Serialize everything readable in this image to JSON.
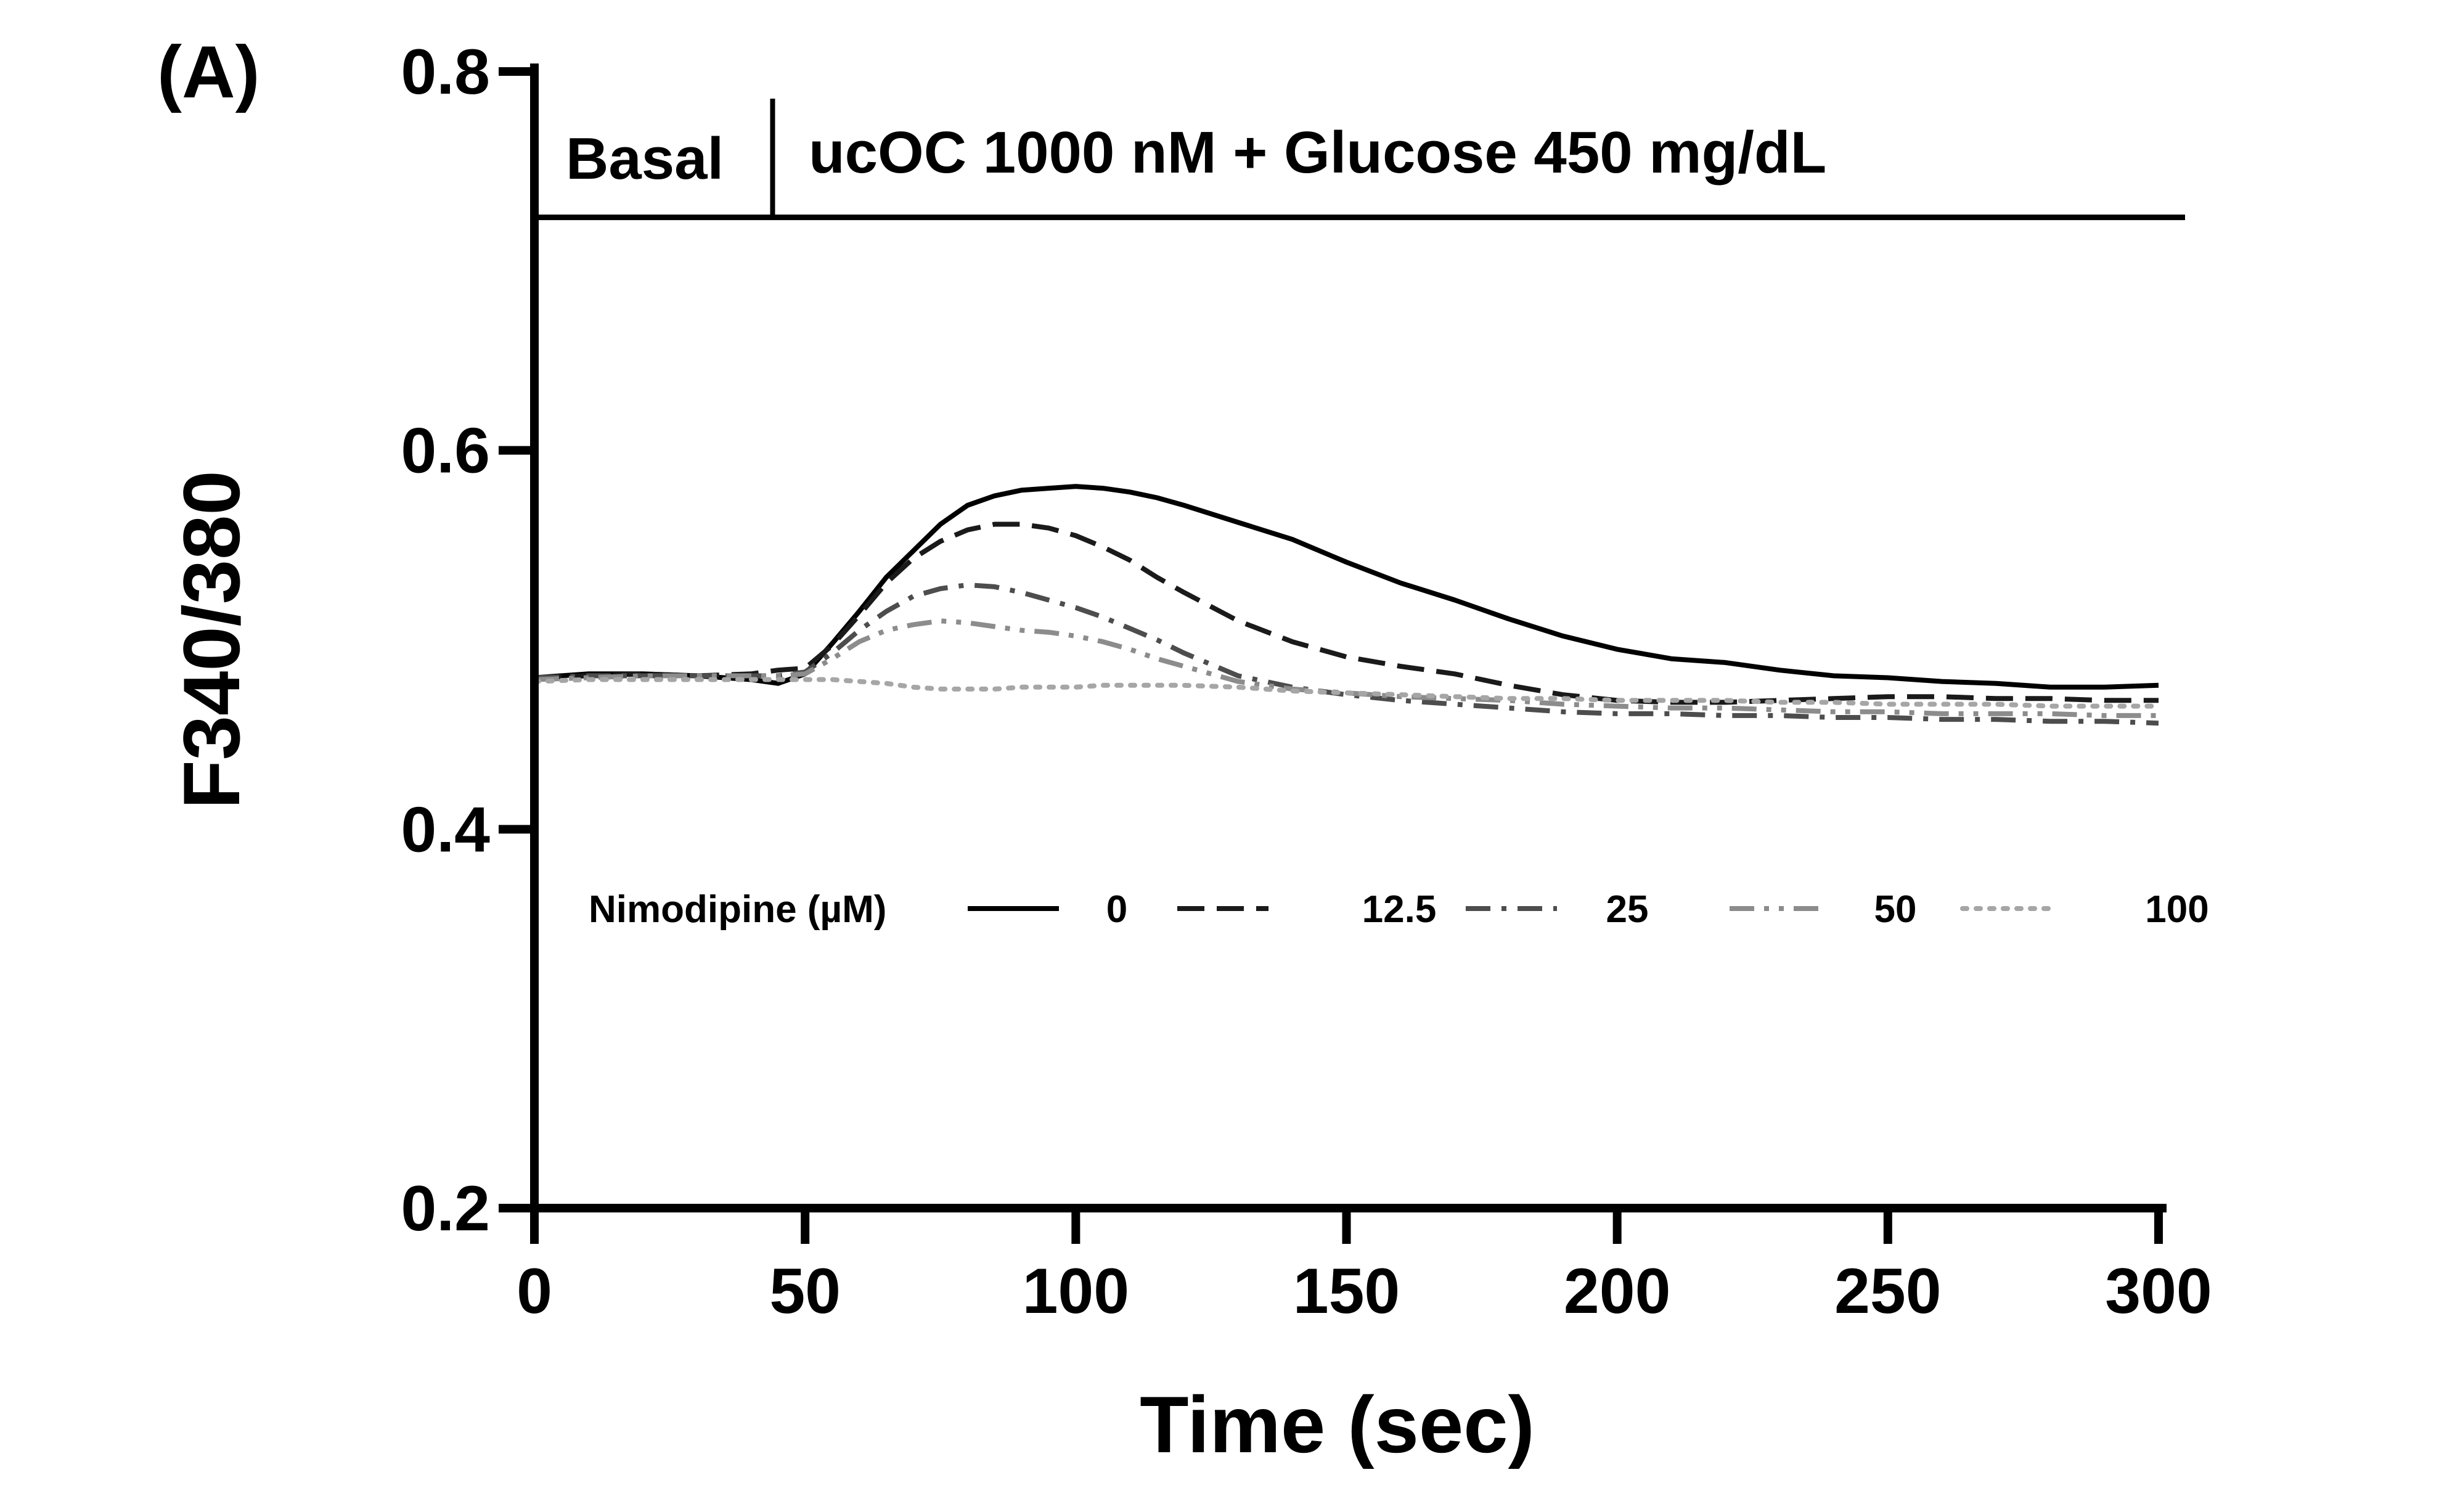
{
  "panel_label": "(A)",
  "chart_data": {
    "type": "line",
    "title": "",
    "xlabel": "Time (sec)",
    "ylabel": "F340/380",
    "xlim": [
      0,
      300
    ],
    "ylim": [
      0.2,
      0.8
    ],
    "xticks": [
      0,
      50,
      100,
      150,
      200,
      250,
      300
    ],
    "yticks": [
      0.2,
      0.4,
      0.6,
      0.8
    ],
    "xtick_labels": [
      "0",
      "50",
      "100",
      "150",
      "200",
      "250",
      "300"
    ],
    "ytick_labels": [
      "0.2",
      "0.4",
      "0.6",
      "0.8"
    ],
    "treatment_bar": {
      "y": 0.723,
      "divider_x": 44,
      "basal_label": "Basal",
      "treatment_label": "ucOC 1000 nM + Glucose 450 mg/dL"
    },
    "legend": {
      "title": "Nimodipine (µM)",
      "placement": "lower-middle"
    },
    "series": [
      {
        "name": "0",
        "color": "#000000",
        "dash": "solid",
        "x": [
          0,
          10,
          20,
          30,
          40,
          45,
          50,
          55,
          60,
          65,
          70,
          75,
          80,
          85,
          90,
          95,
          100,
          105,
          110,
          115,
          120,
          130,
          140,
          150,
          160,
          170,
          180,
          190,
          200,
          210,
          220,
          230,
          240,
          250,
          260,
          270,
          280,
          290,
          300
        ],
        "y": [
          0.48,
          0.482,
          0.482,
          0.481,
          0.479,
          0.477,
          0.482,
          0.498,
          0.515,
          0.533,
          0.547,
          0.561,
          0.571,
          0.576,
          0.579,
          0.58,
          0.581,
          0.58,
          0.578,
          0.575,
          0.571,
          0.562,
          0.553,
          0.541,
          0.53,
          0.521,
          0.511,
          0.502,
          0.495,
          0.49,
          0.488,
          0.484,
          0.481,
          0.48,
          0.478,
          0.477,
          0.475,
          0.475,
          0.476
        ]
      },
      {
        "name": "12.5",
        "color": "#1a1a1a",
        "dash": "dashed",
        "x": [
          0,
          10,
          20,
          30,
          40,
          45,
          50,
          55,
          60,
          65,
          70,
          75,
          80,
          85,
          90,
          95,
          100,
          105,
          110,
          115,
          120,
          130,
          140,
          150,
          160,
          170,
          180,
          190,
          200,
          210,
          220,
          230,
          240,
          250,
          260,
          270,
          280,
          290,
          300
        ],
        "y": [
          0.48,
          0.481,
          0.482,
          0.481,
          0.482,
          0.484,
          0.485,
          0.497,
          0.513,
          0.53,
          0.543,
          0.552,
          0.558,
          0.561,
          0.561,
          0.559,
          0.555,
          0.549,
          0.542,
          0.533,
          0.525,
          0.51,
          0.499,
          0.491,
          0.486,
          0.482,
          0.476,
          0.471,
          0.468,
          0.467,
          0.467,
          0.468,
          0.469,
          0.47,
          0.47,
          0.469,
          0.469,
          0.468,
          0.468
        ]
      },
      {
        "name": "25",
        "color": "#4d4d4d",
        "dash": "dashdot",
        "x": [
          0,
          10,
          20,
          30,
          40,
          45,
          50,
          55,
          60,
          65,
          70,
          75,
          80,
          85,
          90,
          95,
          100,
          105,
          110,
          115,
          120,
          130,
          140,
          150,
          160,
          170,
          180,
          190,
          200,
          210,
          220,
          230,
          240,
          250,
          260,
          270,
          280,
          290,
          300
        ],
        "y": [
          0.48,
          0.481,
          0.481,
          0.481,
          0.481,
          0.481,
          0.483,
          0.493,
          0.505,
          0.515,
          0.523,
          0.527,
          0.529,
          0.528,
          0.525,
          0.521,
          0.517,
          0.512,
          0.506,
          0.5,
          0.493,
          0.481,
          0.475,
          0.471,
          0.468,
          0.466,
          0.464,
          0.462,
          0.461,
          0.461,
          0.46,
          0.46,
          0.459,
          0.459,
          0.458,
          0.458,
          0.457,
          0.457,
          0.456
        ]
      },
      {
        "name": "50",
        "color": "#8c8c8c",
        "dash": "dashdotdot",
        "x": [
          0,
          10,
          20,
          30,
          40,
          45,
          50,
          55,
          60,
          65,
          70,
          75,
          80,
          85,
          90,
          95,
          100,
          105,
          110,
          115,
          120,
          130,
          140,
          150,
          160,
          170,
          180,
          190,
          200,
          210,
          220,
          230,
          240,
          250,
          260,
          270,
          280,
          290,
          300
        ],
        "y": [
          0.479,
          0.48,
          0.481,
          0.481,
          0.481,
          0.481,
          0.482,
          0.49,
          0.499,
          0.505,
          0.508,
          0.51,
          0.509,
          0.507,
          0.505,
          0.504,
          0.502,
          0.499,
          0.495,
          0.49,
          0.486,
          0.478,
          0.474,
          0.472,
          0.47,
          0.469,
          0.468,
          0.466,
          0.465,
          0.464,
          0.464,
          0.463,
          0.462,
          0.462,
          0.461,
          0.461,
          0.461,
          0.46,
          0.46
        ]
      },
      {
        "name": "100",
        "color": "#a6a6a6",
        "dash": "dotted",
        "x": [
          0,
          10,
          20,
          30,
          40,
          45,
          50,
          55,
          60,
          65,
          70,
          75,
          80,
          85,
          90,
          95,
          100,
          105,
          110,
          115,
          120,
          130,
          140,
          150,
          160,
          170,
          180,
          190,
          200,
          210,
          220,
          230,
          240,
          250,
          260,
          270,
          280,
          290,
          300
        ],
        "y": [
          0.478,
          0.479,
          0.479,
          0.479,
          0.479,
          0.479,
          0.479,
          0.479,
          0.478,
          0.477,
          0.475,
          0.474,
          0.474,
          0.474,
          0.475,
          0.475,
          0.475,
          0.476,
          0.476,
          0.476,
          0.476,
          0.475,
          0.473,
          0.472,
          0.471,
          0.47,
          0.469,
          0.469,
          0.468,
          0.468,
          0.468,
          0.467,
          0.467,
          0.466,
          0.466,
          0.466,
          0.465,
          0.465,
          0.465
        ]
      }
    ]
  }
}
